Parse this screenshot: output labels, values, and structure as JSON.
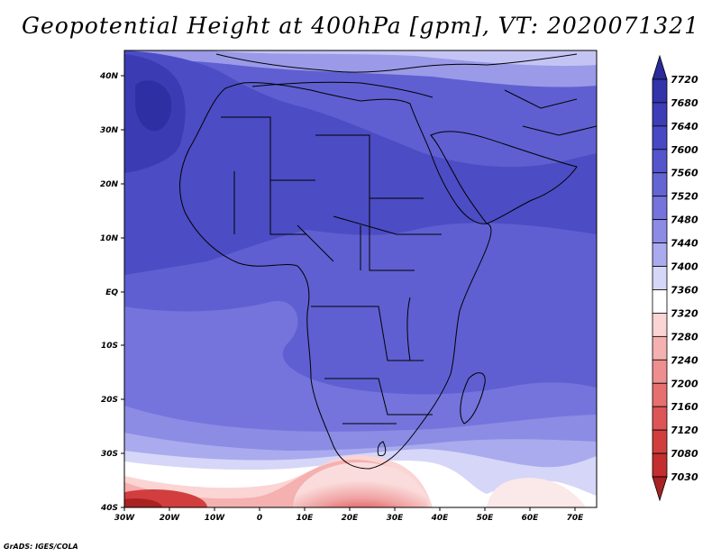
{
  "title": "Geopotential Height at 400hPa [gpm], VT: 2020071321",
  "credit": "GrADS: IGES/COLA",
  "map": {
    "region": "Africa and Middle East",
    "lon_range": [
      -30,
      75
    ],
    "lat_range": [
      -40,
      45
    ],
    "projection": "latlon",
    "lat_labels": [
      "40N",
      "30N",
      "20N",
      "10N",
      "EQ",
      "10S",
      "20S",
      "30S",
      "40S"
    ],
    "lon_labels": [
      "30W",
      "20W",
      "10W",
      "0",
      "10E",
      "20E",
      "30E",
      "40E",
      "50E",
      "60E",
      "70E"
    ]
  },
  "colorbar": {
    "levels": [
      "7720",
      "7680",
      "7640",
      "7600",
      "7560",
      "7520",
      "7480",
      "7440",
      "7400",
      "7360",
      "7320",
      "7280",
      "7240",
      "7200",
      "7160",
      "7120",
      "7080",
      "7030"
    ],
    "colors": [
      "#2b2b9a",
      "#3333aa",
      "#3d3db8",
      "#4848c4",
      "#5454cc",
      "#6464d4",
      "#7474dc",
      "#8c8ce4",
      "#aaaaee",
      "#d6d6f8",
      "#ffffff",
      "#fbd4d4",
      "#f5b0b0",
      "#ee8e8e",
      "#e67070",
      "#dd5555",
      "#d23e3e",
      "#c42e2e",
      "#a82222"
    ]
  }
}
